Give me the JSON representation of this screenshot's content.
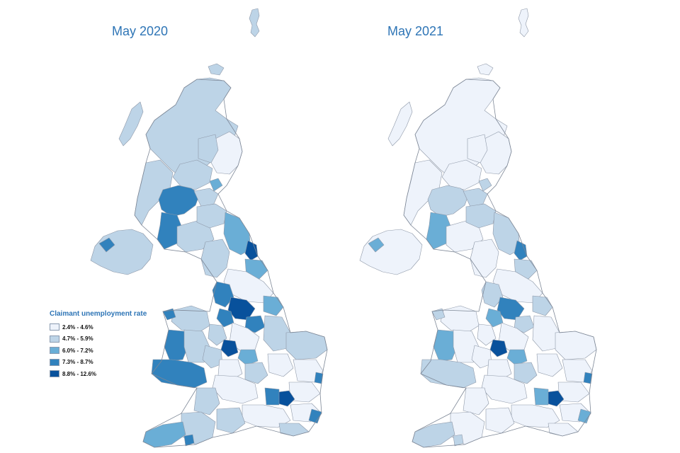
{
  "maps": {
    "left": {
      "title": "May 2020"
    },
    "right": {
      "title": "May 2021"
    }
  },
  "legend": {
    "title": "Claimant unemployment rate",
    "items": [
      {
        "label": "2.4% - 4.6%",
        "color": "#eef3fb"
      },
      {
        "label": "4.7% - 5.9%",
        "color": "#bdd4e7"
      },
      {
        "label": "6.0% - 7.2%",
        "color": "#6aaed6"
      },
      {
        "label": "7.3% - 8.7%",
        "color": "#3182bd"
      },
      {
        "label": "8.8% - 12.6%",
        "color": "#08519c"
      }
    ]
  }
}
